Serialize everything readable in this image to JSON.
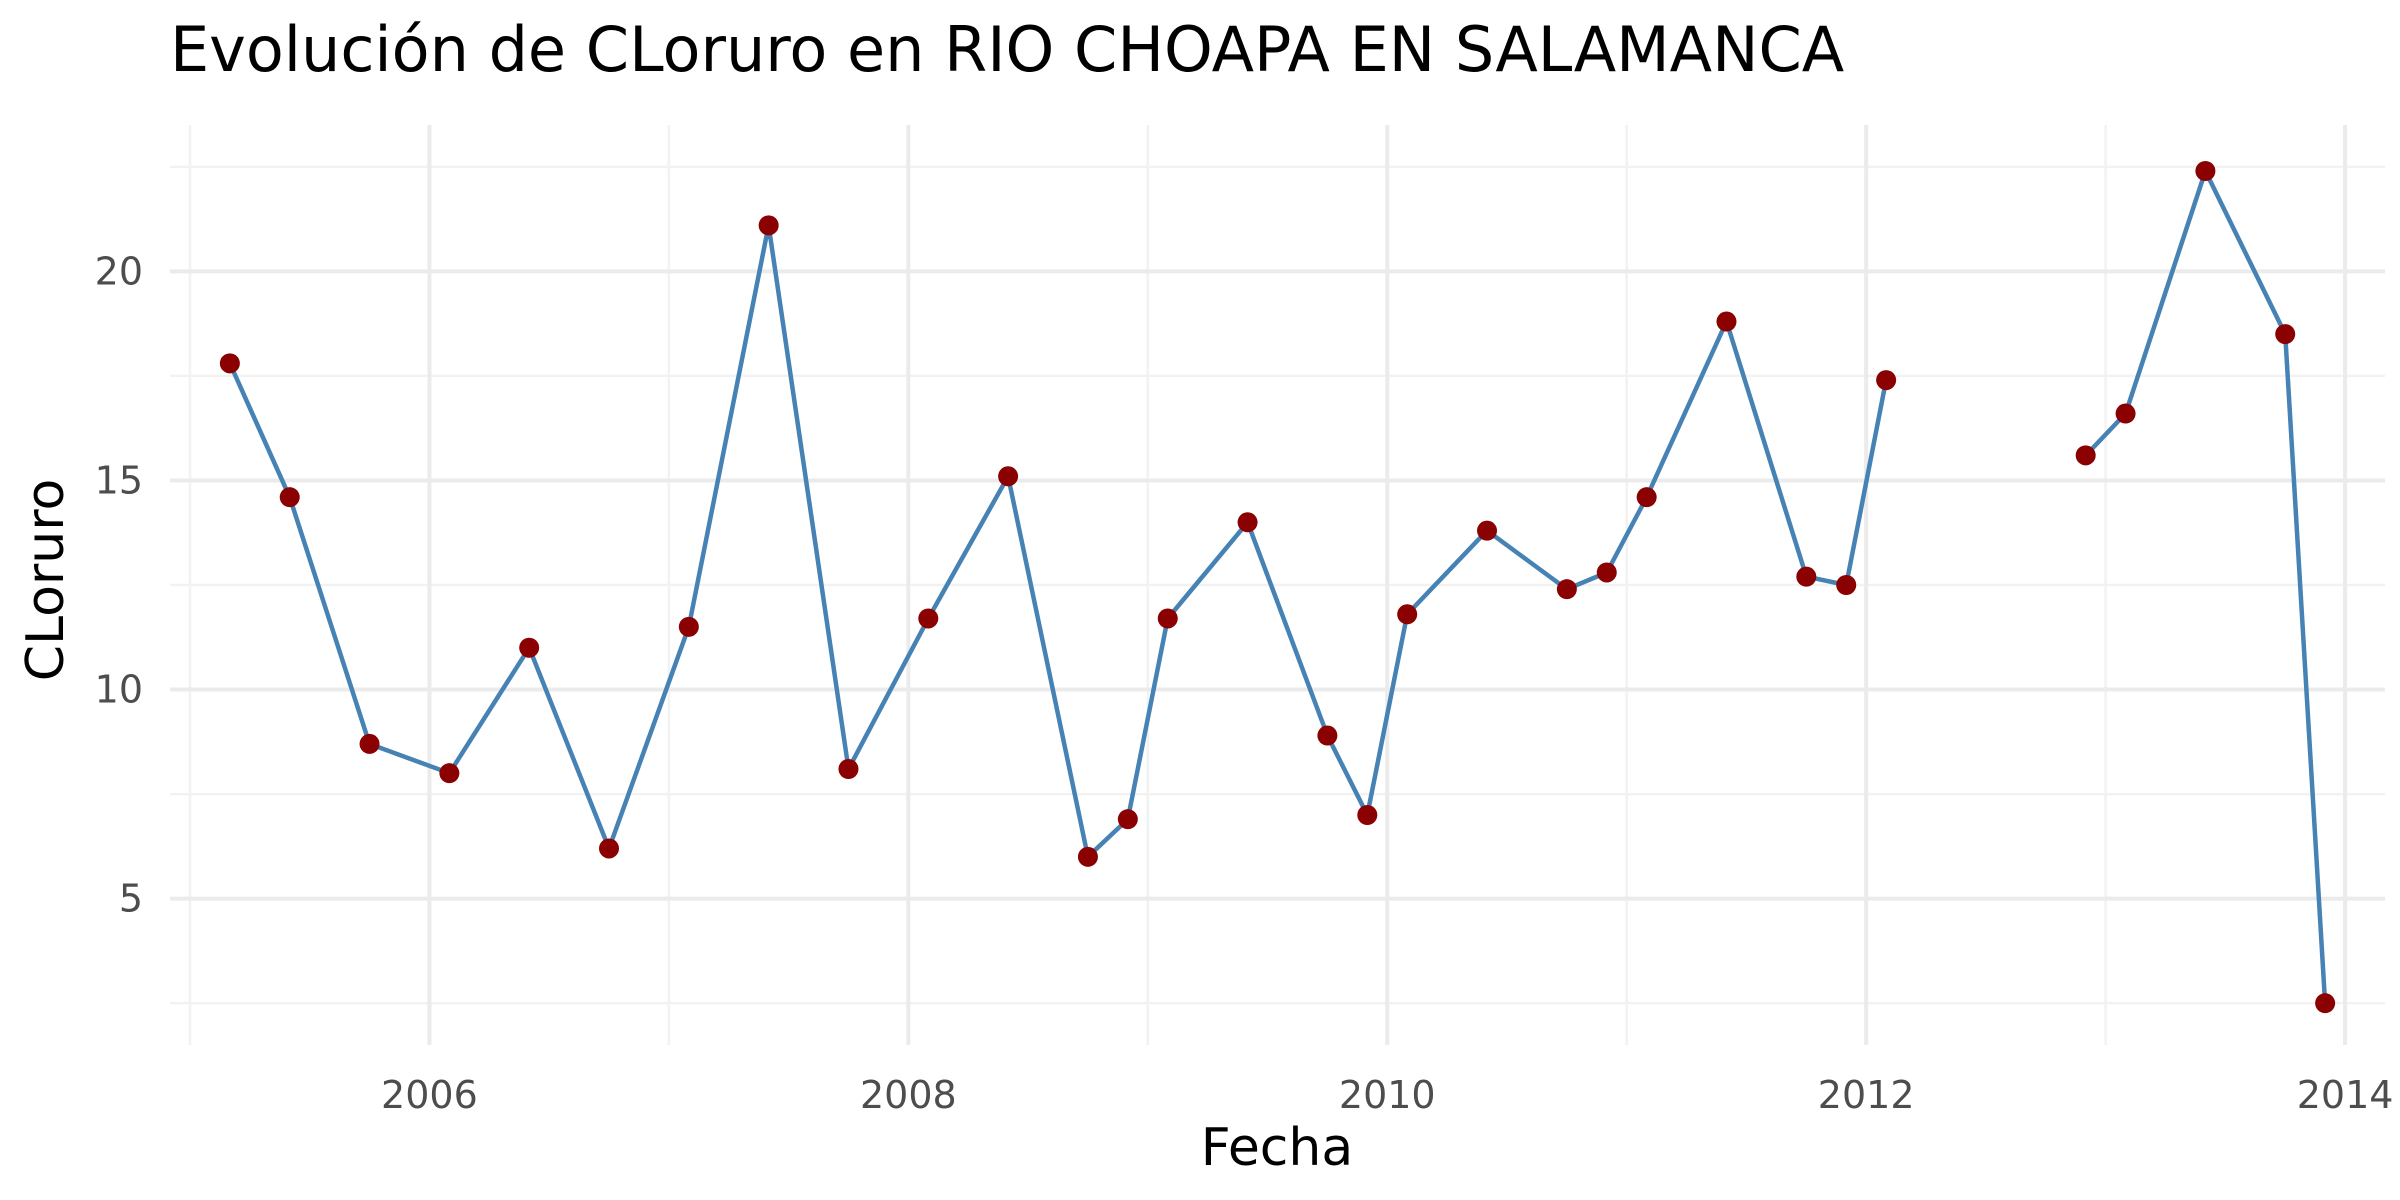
{
  "chart_data": {
    "type": "line",
    "title": "Evolución de CLoruro en RIO CHOAPA EN SALAMANCA",
    "xlabel": "Fecha",
    "ylabel": "CLoruro",
    "x_ticks": [
      "2006",
      "2008",
      "2010",
      "2012",
      "2014"
    ],
    "y_ticks": [
      "5",
      "10",
      "15",
      "20"
    ],
    "xlim": [
      "2004-12-01",
      "2014-03-01"
    ],
    "ylim": [
      1.5,
      23.5
    ],
    "grid": true,
    "line_color": "#4682b4",
    "point_color": "#8b0000",
    "segments": [
      [
        {
          "date": "2005-03-01",
          "value": 17.8
        },
        {
          "date": "2005-06-01",
          "value": 14.6
        },
        {
          "date": "2005-10-01",
          "value": 8.7
        },
        {
          "date": "2006-02-01",
          "value": 8.0
        },
        {
          "date": "2006-06-01",
          "value": 11.0
        },
        {
          "date": "2006-10-01",
          "value": 6.2
        },
        {
          "date": "2007-02-01",
          "value": 11.5
        },
        {
          "date": "2007-06-01",
          "value": 21.1
        },
        {
          "date": "2007-10-01",
          "value": 8.1
        },
        {
          "date": "2008-02-01",
          "value": 11.7
        },
        {
          "date": "2008-06-01",
          "value": 15.1
        },
        {
          "date": "2008-10-01",
          "value": 6.0
        },
        {
          "date": "2008-12-01",
          "value": 6.9
        },
        {
          "date": "2009-02-01",
          "value": 11.7
        },
        {
          "date": "2009-06-01",
          "value": 14.0
        },
        {
          "date": "2009-10-01",
          "value": 8.9
        },
        {
          "date": "2009-12-01",
          "value": 7.0
        },
        {
          "date": "2010-02-01",
          "value": 11.8
        },
        {
          "date": "2010-06-01",
          "value": 13.8
        },
        {
          "date": "2010-10-01",
          "value": 12.4
        },
        {
          "date": "2010-12-01",
          "value": 12.8
        },
        {
          "date": "2011-02-01",
          "value": 14.6
        },
        {
          "date": "2011-06-01",
          "value": 18.8
        },
        {
          "date": "2011-10-01",
          "value": 12.7
        },
        {
          "date": "2011-12-01",
          "value": 12.5
        },
        {
          "date": "2012-02-01",
          "value": 17.4
        }
      ],
      [
        {
          "date": "2012-12-01",
          "value": 15.6
        },
        {
          "date": "2013-02-01",
          "value": 16.6
        },
        {
          "date": "2013-06-01",
          "value": 22.4
        },
        {
          "date": "2013-10-01",
          "value": 18.5
        },
        {
          "date": "2013-12-01",
          "value": 2.5
        }
      ]
    ]
  }
}
